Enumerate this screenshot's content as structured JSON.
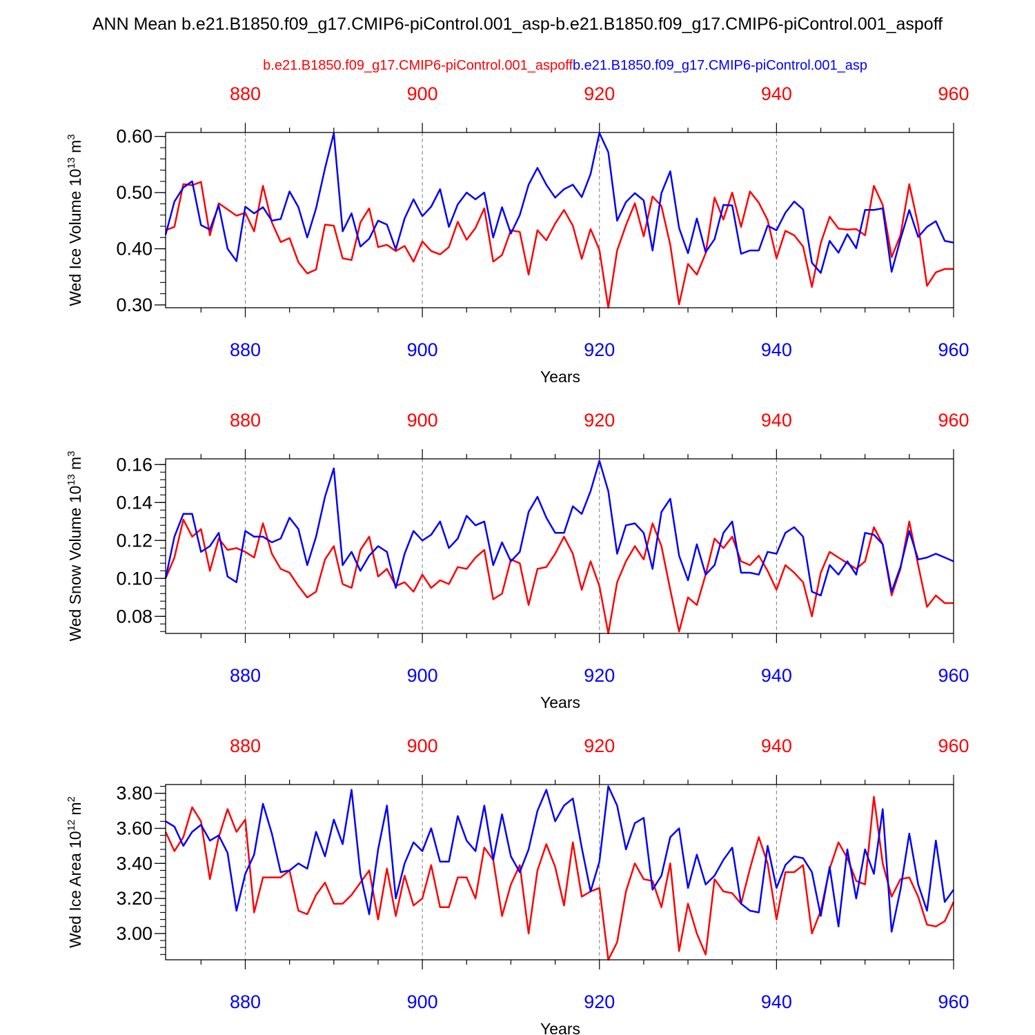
{
  "figure": {
    "title": "ANN Mean b.e21.B1850.f09_g17.CMIP6-piControl.001_asp-b.e21.B1850.f09_g17.CMIP6-piControl.001_aspoff",
    "legend_red": "b.e21.B1850.f09_g17.CMIP6-piControl.001_aspoff",
    "legend_blue": "b.e21.B1850.f09_g17.CMIP6-piControl.001_asp",
    "colors": {
      "red": "#ff0000",
      "blue": "#0000ff",
      "axis": "#000000",
      "grid": "#777777"
    }
  },
  "chart_data": [
    {
      "type": "line",
      "ylabel": "Wed Ice Volume 10^13 m^3",
      "ylabel_main": "Wed Ice Volume 10",
      "ylabel_exp": "13",
      "ylabel_unit": "m",
      "ylabel_unit_exp": "3",
      "xlabel": "Years",
      "xlim": [
        871,
        960
      ],
      "ylim": [
        0.295,
        0.607
      ],
      "x_ticks": [
        880,
        900,
        920,
        940,
        960
      ],
      "y_ticks": [
        0.3,
        0.4,
        0.5,
        0.6
      ],
      "y_tick_labels": [
        "0.30",
        "0.40",
        "0.50",
        "0.60"
      ],
      "y_minor_step": 0.02,
      "x_start": 871,
      "grid": "dashed vertical at major x ticks",
      "series": [
        {
          "name": "b.e21.B1850.f09_g17.CMIP6-piControl.001_aspoff",
          "color": "#ff0000",
          "values": [
            0.433,
            0.439,
            0.515,
            0.513,
            0.519,
            0.424,
            0.481,
            0.47,
            0.459,
            0.464,
            0.431,
            0.512,
            0.447,
            0.412,
            0.419,
            0.376,
            0.356,
            0.363,
            0.443,
            0.441,
            0.383,
            0.38,
            0.447,
            0.472,
            0.403,
            0.407,
            0.396,
            0.405,
            0.377,
            0.413,
            0.396,
            0.39,
            0.403,
            0.448,
            0.416,
            0.437,
            0.472,
            0.377,
            0.389,
            0.433,
            0.43,
            0.354,
            0.433,
            0.415,
            0.445,
            0.469,
            0.441,
            0.382,
            0.435,
            0.398,
            0.295,
            0.397,
            0.442,
            0.481,
            0.422,
            0.493,
            0.476,
            0.407,
            0.301,
            0.373,
            0.354,
            0.392,
            0.491,
            0.452,
            0.5,
            0.439,
            0.502,
            0.482,
            0.451,
            0.383,
            0.432,
            0.424,
            0.404,
            0.332,
            0.41,
            0.457,
            0.436,
            0.434,
            0.435,
            0.424,
            0.512,
            0.478,
            0.385,
            0.424,
            0.515,
            0.442,
            0.334,
            0.358,
            0.364,
            0.364
          ]
        },
        {
          "name": "b.e21.B1850.f09_g17.CMIP6-piControl.001_asp",
          "color": "#0000ff",
          "values": [
            0.425,
            0.484,
            0.509,
            0.52,
            0.442,
            0.434,
            0.477,
            0.4,
            0.378,
            0.475,
            0.463,
            0.474,
            0.45,
            0.453,
            0.502,
            0.474,
            0.42,
            0.472,
            0.543,
            0.606,
            0.431,
            0.463,
            0.404,
            0.418,
            0.45,
            0.443,
            0.399,
            0.454,
            0.488,
            0.458,
            0.475,
            0.506,
            0.439,
            0.479,
            0.5,
            0.488,
            0.5,
            0.42,
            0.474,
            0.427,
            0.46,
            0.514,
            0.544,
            0.514,
            0.491,
            0.506,
            0.514,
            0.492,
            0.533,
            0.606,
            0.572,
            0.45,
            0.483,
            0.499,
            0.486,
            0.397,
            0.499,
            0.538,
            0.437,
            0.392,
            0.454,
            0.394,
            0.417,
            0.478,
            0.477,
            0.391,
            0.397,
            0.397,
            0.441,
            0.433,
            0.464,
            0.484,
            0.47,
            0.375,
            0.357,
            0.414,
            0.393,
            0.426,
            0.401,
            0.469,
            0.469,
            0.472,
            0.359,
            0.417,
            0.469,
            0.421,
            0.439,
            0.449,
            0.414,
            0.411
          ]
        }
      ]
    },
    {
      "type": "line",
      "ylabel": "Wed Snow Volume 10^13 m^3",
      "ylabel_main": "Wed Snow Volume 10",
      "ylabel_exp": "13",
      "ylabel_unit": "m",
      "ylabel_unit_exp": "3",
      "xlabel": "Years",
      "xlim": [
        871,
        960
      ],
      "ylim": [
        0.071,
        0.163
      ],
      "x_ticks": [
        880,
        900,
        920,
        940,
        960
      ],
      "y_ticks": [
        0.08,
        0.1,
        0.12,
        0.14,
        0.16
      ],
      "y_tick_labels": [
        "0.08",
        "0.10",
        "0.12",
        "0.14",
        "0.16"
      ],
      "y_minor_step": 0.004,
      "x_start": 871,
      "grid": "dashed vertical at major x ticks",
      "series": [
        {
          "name": "b.e21.B1850.f09_g17.CMIP6-piControl.001_aspoff",
          "color": "#ff0000",
          "values": [
            0.1,
            0.111,
            0.131,
            0.122,
            0.126,
            0.104,
            0.121,
            0.115,
            0.116,
            0.114,
            0.111,
            0.129,
            0.113,
            0.105,
            0.103,
            0.096,
            0.09,
            0.093,
            0.11,
            0.117,
            0.097,
            0.095,
            0.115,
            0.122,
            0.101,
            0.105,
            0.096,
            0.098,
            0.093,
            0.102,
            0.095,
            0.099,
            0.097,
            0.106,
            0.105,
            0.111,
            0.115,
            0.089,
            0.092,
            0.11,
            0.108,
            0.086,
            0.105,
            0.106,
            0.113,
            0.122,
            0.113,
            0.094,
            0.109,
            0.096,
            0.071,
            0.098,
            0.109,
            0.117,
            0.11,
            0.129,
            0.117,
            0.094,
            0.072,
            0.09,
            0.086,
            0.102,
            0.121,
            0.116,
            0.122,
            0.109,
            0.107,
            0.112,
            0.104,
            0.094,
            0.107,
            0.103,
            0.098,
            0.08,
            0.103,
            0.114,
            0.111,
            0.108,
            0.105,
            0.109,
            0.127,
            0.118,
            0.091,
            0.105,
            0.13,
            0.107,
            0.085,
            0.091,
            0.087,
            0.087
          ]
        },
        {
          "name": "b.e21.B1850.f09_g17.CMIP6-piControl.001_asp",
          "color": "#0000ff",
          "values": [
            0.1,
            0.122,
            0.134,
            0.134,
            0.114,
            0.117,
            0.124,
            0.101,
            0.098,
            0.125,
            0.122,
            0.122,
            0.119,
            0.121,
            0.132,
            0.126,
            0.107,
            0.122,
            0.143,
            0.158,
            0.107,
            0.114,
            0.104,
            0.112,
            0.117,
            0.114,
            0.095,
            0.113,
            0.125,
            0.12,
            0.123,
            0.13,
            0.116,
            0.121,
            0.133,
            0.128,
            0.13,
            0.107,
            0.119,
            0.109,
            0.114,
            0.135,
            0.143,
            0.132,
            0.124,
            0.124,
            0.138,
            0.134,
            0.146,
            0.162,
            0.146,
            0.113,
            0.128,
            0.129,
            0.124,
            0.105,
            0.135,
            0.142,
            0.112,
            0.099,
            0.118,
            0.102,
            0.107,
            0.124,
            0.13,
            0.103,
            0.103,
            0.102,
            0.114,
            0.113,
            0.124,
            0.127,
            0.122,
            0.093,
            0.091,
            0.107,
            0.102,
            0.109,
            0.102,
            0.124,
            0.123,
            0.118,
            0.093,
            0.106,
            0.125,
            0.11,
            0.111,
            0.113,
            0.111,
            0.109
          ]
        }
      ]
    },
    {
      "type": "line",
      "ylabel": "Wed Ice Area 10^12 m^2",
      "ylabel_main": "Wed Ice Area 10",
      "ylabel_exp": "12",
      "ylabel_unit": "m",
      "ylabel_unit_exp": "2",
      "xlabel": "Years",
      "xlim": [
        871,
        960
      ],
      "ylim": [
        2.85,
        3.85
      ],
      "x_ticks": [
        880,
        900,
        920,
        940,
        960
      ],
      "y_ticks": [
        3.0,
        3.2,
        3.4,
        3.6,
        3.8
      ],
      "y_tick_labels": [
        "3.00",
        "3.20",
        "3.40",
        "3.60",
        "3.80"
      ],
      "y_minor_step": 0.04,
      "x_start": 871,
      "grid": "dashed vertical at major x ticks",
      "series": [
        {
          "name": "b.e21.B1850.f09_g17.CMIP6-piControl.001_aspoff",
          "color": "#ff0000",
          "values": [
            3.58,
            3.47,
            3.55,
            3.72,
            3.64,
            3.31,
            3.55,
            3.71,
            3.58,
            3.65,
            3.12,
            3.32,
            3.32,
            3.32,
            3.36,
            3.13,
            3.11,
            3.22,
            3.29,
            3.17,
            3.17,
            3.22,
            3.29,
            3.36,
            3.08,
            3.37,
            3.1,
            3.33,
            3.16,
            3.2,
            3.39,
            3.15,
            3.15,
            3.32,
            3.32,
            3.2,
            3.49,
            3.42,
            3.1,
            3.28,
            3.39,
            3.0,
            3.36,
            3.51,
            3.38,
            3.16,
            3.52,
            3.21,
            3.24,
            3.26,
            2.85,
            2.95,
            3.24,
            3.4,
            3.31,
            3.3,
            3.15,
            3.4,
            2.9,
            3.17,
            3.0,
            2.88,
            3.31,
            3.24,
            3.23,
            3.17,
            3.37,
            3.55,
            3.4,
            3.08,
            3.35,
            3.35,
            3.39,
            3.0,
            3.13,
            3.37,
            3.52,
            3.43,
            3.3,
            3.28,
            3.78,
            3.4,
            3.21,
            3.31,
            3.32,
            3.21,
            3.05,
            3.04,
            3.07,
            3.18
          ]
        },
        {
          "name": "b.e21.B1850.f09_g17.CMIP6-piControl.001_asp",
          "color": "#0000ff",
          "values": [
            3.64,
            3.61,
            3.5,
            3.58,
            3.62,
            3.53,
            3.56,
            3.46,
            3.13,
            3.34,
            3.45,
            3.74,
            3.57,
            3.35,
            3.36,
            3.4,
            3.37,
            3.58,
            3.44,
            3.65,
            3.51,
            3.82,
            3.34,
            3.11,
            3.48,
            3.73,
            3.2,
            3.4,
            3.52,
            3.47,
            3.6,
            3.41,
            3.41,
            3.67,
            3.53,
            3.47,
            3.73,
            3.42,
            3.68,
            3.44,
            3.35,
            3.48,
            3.7,
            3.82,
            3.64,
            3.73,
            3.77,
            3.49,
            3.24,
            3.41,
            3.84,
            3.73,
            3.48,
            3.63,
            3.66,
            3.25,
            3.33,
            3.55,
            3.6,
            3.26,
            3.45,
            3.28,
            3.33,
            3.42,
            3.49,
            3.17,
            3.13,
            3.12,
            3.5,
            3.26,
            3.39,
            3.44,
            3.43,
            3.35,
            3.1,
            3.38,
            3.04,
            3.48,
            3.2,
            3.48,
            3.34,
            3.71,
            3.01,
            3.25,
            3.57,
            3.28,
            3.13,
            3.53,
            3.18,
            3.25
          ]
        }
      ]
    }
  ]
}
